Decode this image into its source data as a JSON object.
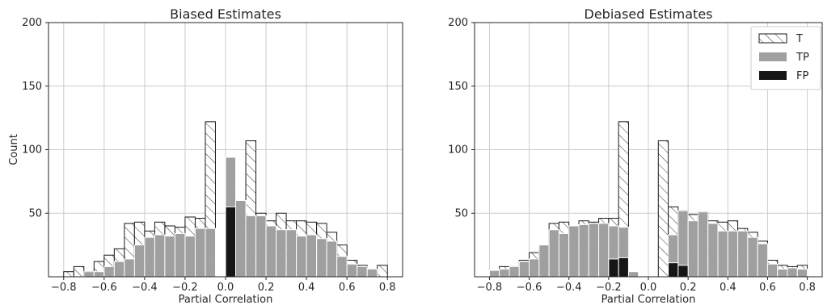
{
  "chart_data": [
    {
      "type": "bar",
      "title": "Biased Estimates",
      "xlabel": "Partial Correlation",
      "ylabel": "Count",
      "xlim": [
        -0.875,
        0.875
      ],
      "ylim": [
        0,
        200
      ],
      "xticks": [
        "−0.8",
        "−0.6",
        "−0.4",
        "−0.2",
        "0.0",
        "0.2",
        "0.4",
        "0.6",
        "0.8"
      ],
      "yticks": [
        "50",
        "100",
        "150",
        "200"
      ],
      "grid": true,
      "bin_width": 0.05,
      "bin_centers": [
        -0.775,
        -0.725,
        -0.675,
        -0.625,
        -0.575,
        -0.525,
        -0.475,
        -0.425,
        -0.375,
        -0.325,
        -0.275,
        -0.225,
        -0.175,
        -0.125,
        -0.075,
        -0.025,
        0.025,
        0.075,
        0.125,
        0.175,
        0.225,
        0.275,
        0.325,
        0.375,
        0.425,
        0.475,
        0.525,
        0.575,
        0.625,
        0.675,
        0.725,
        0.775
      ],
      "series": [
        {
          "name": "T",
          "values": [
            4,
            8,
            4,
            12,
            17,
            22,
            42,
            43,
            36,
            43,
            40,
            39,
            47,
            46,
            122,
            0,
            0,
            36,
            107,
            50,
            44,
            50,
            44,
            44,
            43,
            42,
            35,
            25,
            13,
            9,
            6,
            9
          ]
        },
        {
          "name": "TP",
          "values": [
            0,
            0,
            4,
            4,
            8,
            12,
            14,
            25,
            31,
            33,
            32,
            34,
            32,
            38,
            38,
            0,
            94,
            60,
            48,
            48,
            40,
            37,
            37,
            32,
            33,
            30,
            28,
            16,
            10,
            8,
            6,
            0
          ]
        },
        {
          "name": "FP",
          "values": [
            0,
            0,
            0,
            0,
            0,
            0,
            0,
            0,
            0,
            0,
            0,
            0,
            0,
            0,
            0,
            0,
            55,
            0,
            0,
            0,
            0,
            0,
            0,
            0,
            0,
            0,
            0,
            0,
            0,
            0,
            0,
            0
          ]
        }
      ]
    },
    {
      "type": "bar",
      "title": "Debiased Estimates",
      "xlabel": "Partial Correlation",
      "ylabel": "",
      "xlim": [
        -0.875,
        0.875
      ],
      "ylim": [
        0,
        200
      ],
      "xticks": [
        "−0.8",
        "−0.6",
        "−0.4",
        "−0.2",
        "0.0",
        "0.2",
        "0.4",
        "0.6",
        "0.8"
      ],
      "yticks": [
        "50",
        "100",
        "150",
        "200"
      ],
      "grid": true,
      "legend_position": "top-right",
      "legend": [
        {
          "label": "T",
          "style": "hatched"
        },
        {
          "label": "TP",
          "color": "#a0a0a0"
        },
        {
          "label": "FP",
          "color": "#161616"
        }
      ],
      "bin_width": 0.05,
      "bin_centers": [
        -0.775,
        -0.725,
        -0.675,
        -0.625,
        -0.575,
        -0.525,
        -0.475,
        -0.425,
        -0.375,
        -0.325,
        -0.275,
        -0.225,
        -0.175,
        -0.125,
        -0.075,
        -0.025,
        0.025,
        0.075,
        0.125,
        0.175,
        0.225,
        0.275,
        0.325,
        0.375,
        0.425,
        0.475,
        0.525,
        0.575,
        0.625,
        0.675,
        0.725,
        0.775
      ],
      "series": [
        {
          "name": "T",
          "values": [
            0,
            8,
            8,
            13,
            19,
            22,
            42,
            43,
            40,
            44,
            43,
            46,
            46,
            122,
            0,
            0,
            0,
            107,
            55,
            52,
            49,
            51,
            44,
            43,
            44,
            38,
            35,
            28,
            13,
            9,
            8,
            9
          ]
        },
        {
          "name": "TP",
          "values": [
            5,
            6,
            8,
            12,
            14,
            25,
            37,
            34,
            40,
            41,
            42,
            42,
            40,
            39,
            4,
            0,
            0,
            0,
            33,
            52,
            44,
            51,
            42,
            36,
            36,
            36,
            31,
            26,
            10,
            6,
            7,
            6
          ]
        },
        {
          "name": "FP",
          "values": [
            0,
            0,
            0,
            0,
            0,
            0,
            0,
            0,
            0,
            0,
            0,
            0,
            14,
            15,
            0,
            0,
            0,
            0,
            11,
            9,
            0,
            0,
            0,
            0,
            0,
            0,
            0,
            0,
            0,
            0,
            0,
            0
          ]
        }
      ]
    }
  ],
  "colors": {
    "tp": "#a0a0a0",
    "fp": "#161616",
    "t_edge": "#1a1a1a",
    "tp_edge": "#ffffff",
    "grid": "#cccccc",
    "axis": "#262626"
  }
}
